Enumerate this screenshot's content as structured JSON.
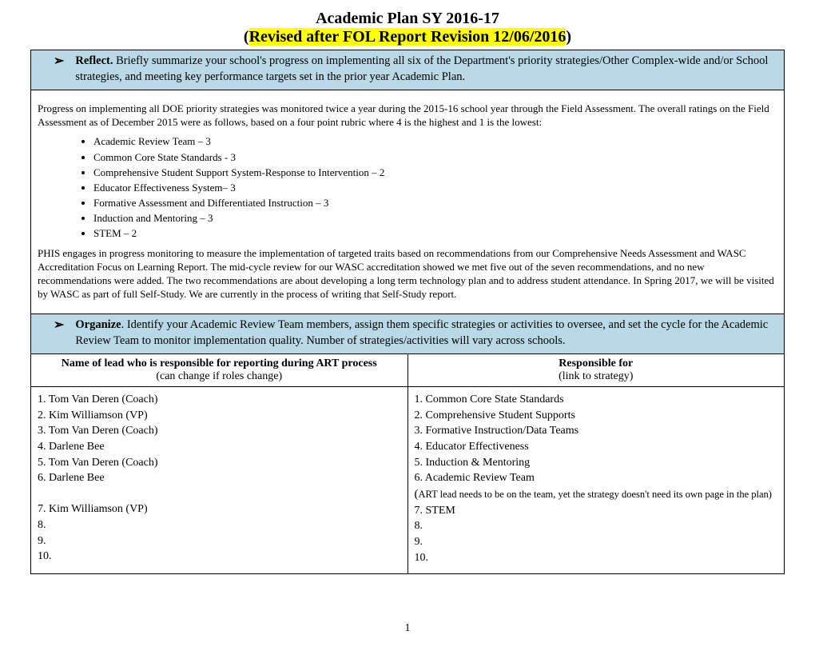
{
  "header": {
    "line1": "Academic Plan SY 2016-17",
    "line2_open": "(",
    "line2_hl": "Revised after FOL Report Revision 12/06/2016",
    "line2_close": ")"
  },
  "colors": {
    "highlight": "#ffff00",
    "blue_row": "#b9d9e7",
    "border": "#000000",
    "background": "#ffffff",
    "text": "#000000"
  },
  "reflect": {
    "label_bold": "Reflect.",
    "text": " Briefly summarize your school's progress on implementing all six of the Department's priority strategies/Other Complex-wide and/or School strategies, and meeting key performance targets set in the prior year Academic Plan."
  },
  "progress_intro": "Progress on implementing all DOE priority strategies was monitored twice a year during the 2015-16 school year through the Field Assessment.  The overall ratings on the Field Assessment as of December  2015 were as follows, based on a four point rubric where 4 is the highest and 1 is the lowest:",
  "bullets": [
    "Academic Review Team – 3",
    "Common Core State Standards - 3",
    "Comprehensive Student Support System-Response to Intervention – 2",
    "Educator Effectiveness System– 3",
    "Formative Assessment and Differentiated Instruction – 3",
    "Induction and Mentoring – 3",
    "STEM – 2"
  ],
  "progress_p2": "PHIS engages in progress monitoring to measure the implementation of targeted traits based on recommendations from our Comprehensive Needs Assessment and WASC Accreditation Focus on Learning Report.  The mid-cycle review for our WASC accreditation showed we met five out of the seven recommendations, and no new recommendations were added.  The two recommendations are about developing a long term technology plan and to address student attendance.  In Spring 2017, we will be visited by WASC as part of full Self-Study.  We are currently in the process of writing that Self-Study report.",
  "organize": {
    "label_bold": "Organize",
    "text": ". Identify your Academic Review Team members, assign them specific strategies or activities to oversee, and set the cycle for the Academic Review Team to monitor implementation quality.  Number of strategies/activities will vary across schools."
  },
  "col_headers": {
    "left_bold": "Name  of lead who is responsible for reporting during ART process",
    "left_sub": "(can change if roles change)",
    "right_bold": "Responsible for",
    "right_sub": "(link to strategy)"
  },
  "leads": [
    "1. Tom Van Deren (Coach)",
    "2. Kim Williamson (VP)",
    "3. Tom Van Deren (Coach)",
    "4. Darlene Bee",
    "5. Tom Van Deren (Coach)",
    "6. Darlene Bee",
    "",
    "7. Kim Williamson (VP)",
    "8.",
    "9.",
    "10."
  ],
  "responsible": [
    "1. Common Core State Standards",
    "2. Comprehensive Student Supports",
    "3. Formative Instruction/Data Teams",
    "4. Educator Effectiveness",
    "5. Induction & Mentoring",
    "6. Academic Review Team"
  ],
  "responsible_note_open": "(",
  "responsible_note": "ART lead needs to be on the team, yet the strategy doesn't need its own page in the plan)",
  "responsible_tail": [
    "7. STEM",
    "8.",
    "9.",
    "10."
  ],
  "page_number": "1"
}
